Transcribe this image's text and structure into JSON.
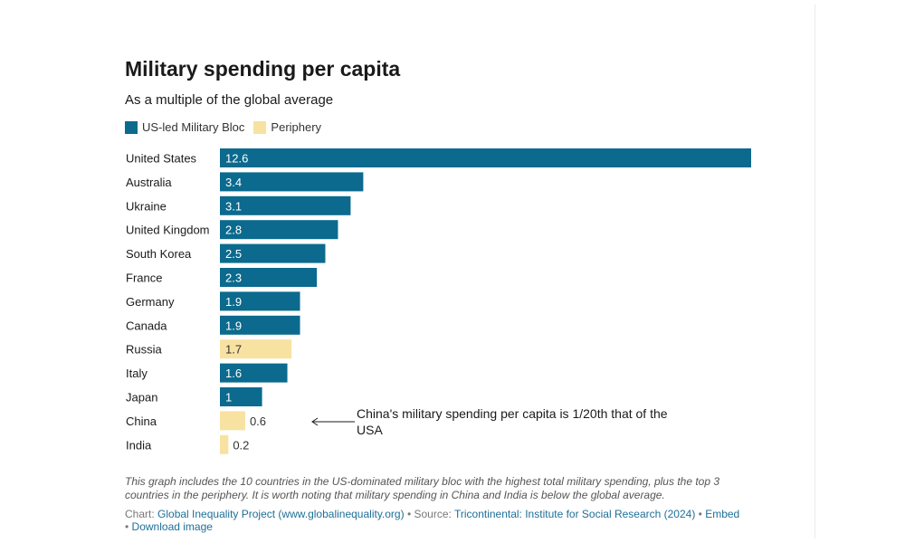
{
  "title": "Military spending per capita",
  "subtitle": "As a multiple of the global average",
  "legend": [
    {
      "label": "US-led Military Bloc",
      "color": "#0b6a8d"
    },
    {
      "label": "Periphery",
      "color": "#f8e2a2"
    }
  ],
  "chart_data": {
    "type": "bar",
    "orientation": "horizontal",
    "title": "Military spending per capita",
    "subtitle": "As a multiple of the global average",
    "categories": [
      "United States",
      "Australia",
      "Ukraine",
      "United Kingdom",
      "South Korea",
      "France",
      "Germany",
      "Canada",
      "Russia",
      "Italy",
      "Japan",
      "China",
      "India"
    ],
    "values": [
      12.6,
      3.4,
      3.1,
      2.8,
      2.5,
      2.3,
      1.9,
      1.9,
      1.7,
      1.6,
      1,
      0.6,
      0.2
    ],
    "value_labels": [
      "12.6",
      "3.4",
      "3.1",
      "2.8",
      "2.5",
      "2.3",
      "1.9",
      "1.9",
      "1.7",
      "1.6",
      "1",
      "0.6",
      "0.2"
    ],
    "groups": [
      "US-led Military Bloc",
      "US-led Military Bloc",
      "US-led Military Bloc",
      "US-led Military Bloc",
      "US-led Military Bloc",
      "US-led Military Bloc",
      "US-led Military Bloc",
      "US-led Military Bloc",
      "Periphery",
      "US-led Military Bloc",
      "US-led Military Bloc",
      "Periphery",
      "Periphery"
    ],
    "colors": {
      "US-led Military Bloc": "#0b6a8d",
      "Periphery": "#f8e2a2"
    },
    "xlim": [
      0,
      12.6
    ],
    "grid": false,
    "legend_position": "top-left"
  },
  "annotation": {
    "text": "China's military spending per capita is 1/20th that of the USA",
    "target": "China"
  },
  "footer": {
    "note": "This graph includes the 10 countries in the US-dominated military bloc with the highest total military spending, plus the top 3 countries in the periphery. It is worth noting that military spending in China and India is below the global average.",
    "chart_prefix": "Chart: ",
    "chart_link": "Global Inequality Project (www.globalinequality.org)",
    "separator": " • ",
    "source_prefix": "Source: ",
    "source_link": "Tricontinental: Institute for Social Research (2024)",
    "embed_link": "Embed",
    "download_link": "Download image"
  }
}
